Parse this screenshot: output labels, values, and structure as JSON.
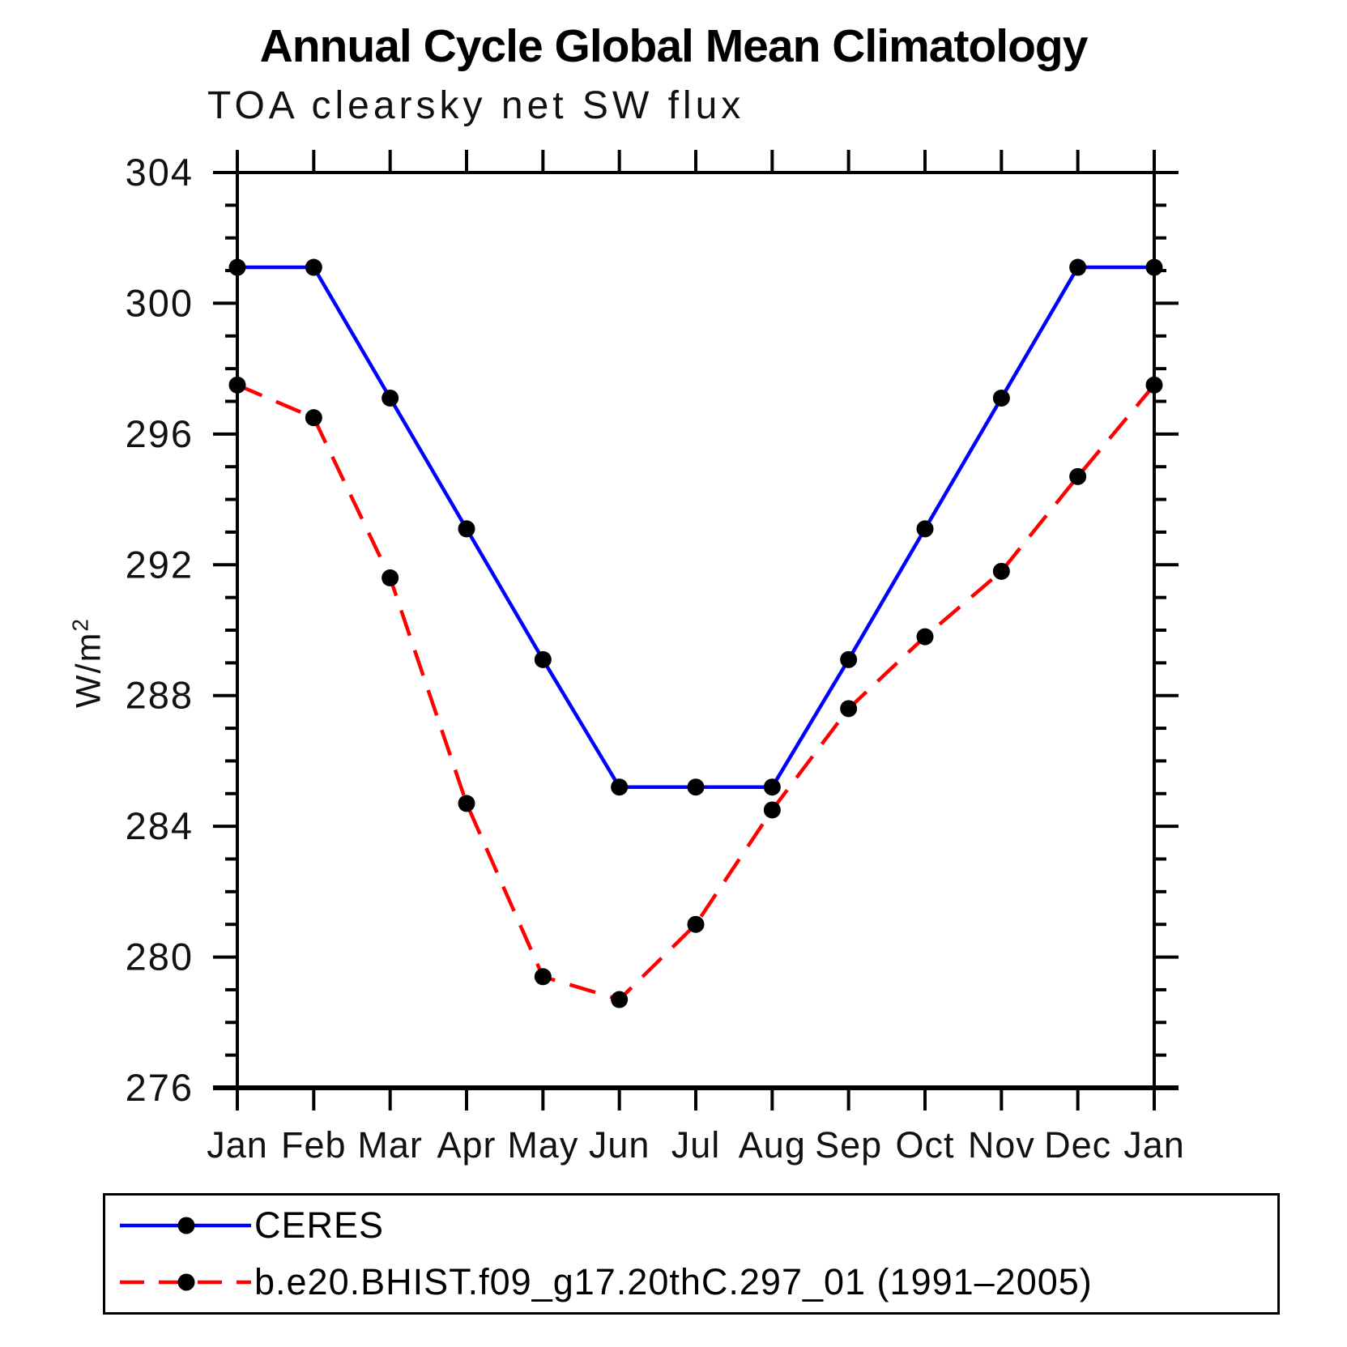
{
  "title": "Annual Cycle Global Mean Climatology",
  "subtitle": "TOA clearsky net SW flux",
  "y_axis": {
    "label_base": "W/m",
    "label_exponent": "2"
  },
  "legend": {
    "entries": [
      {
        "label": "CERES"
      },
      {
        "label": "b.e20.BHIST.f09_g17.20thC.297_01 (1991–2005)"
      }
    ]
  },
  "chart_data": {
    "type": "line",
    "title": "Annual Cycle Global Mean Climatology",
    "subtitle": "TOA clearsky net SW flux",
    "ylabel": "W/m2",
    "xlabel": "",
    "categories": [
      "Jan",
      "Feb",
      "Mar",
      "Apr",
      "May",
      "Jun",
      "Jul",
      "Aug",
      "Sep",
      "Oct",
      "Nov",
      "Dec",
      "Jan"
    ],
    "series": [
      {
        "name": "CERES",
        "color": "#0000ff",
        "line_style": "solid",
        "marker_color": "#000000",
        "values": [
          301.1,
          301.1,
          297.1,
          293.1,
          289.1,
          285.2,
          285.2,
          285.2,
          289.1,
          293.1,
          297.1,
          301.1,
          301.1
        ]
      },
      {
        "name": "b.e20.BHIST.f09_g17.20thC.297_01 (1991–2005)",
        "color": "#ff0000",
        "line_style": "dashed",
        "marker_color": "#000000",
        "values": [
          297.5,
          296.5,
          291.6,
          284.7,
          279.4,
          278.7,
          281.0,
          284.5,
          287.6,
          289.8,
          291.8,
          294.7,
          297.5
        ]
      }
    ],
    "ylim": [
      276,
      304
    ],
    "ytick_major_step": 4,
    "ytick_minor_step": 1,
    "grid": false,
    "legend_position": "bottom"
  }
}
